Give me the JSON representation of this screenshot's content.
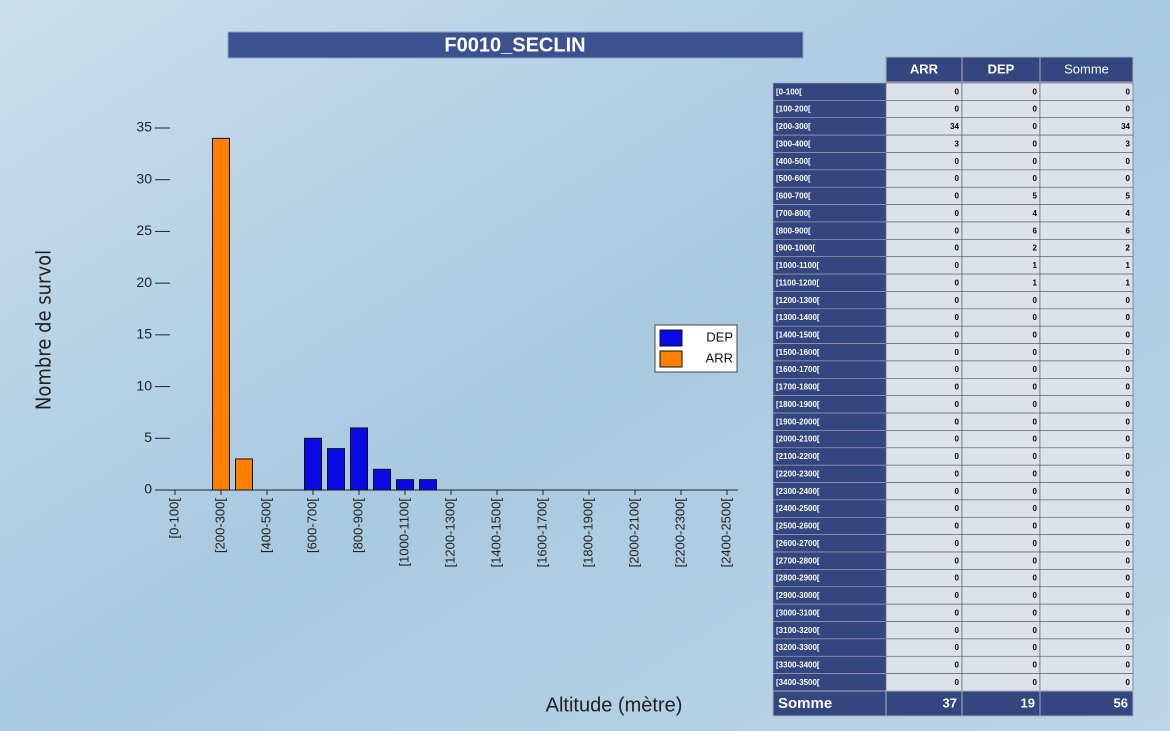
{
  "chart_data": {
    "type": "bar",
    "title": "F0010_SECLIN",
    "y_label": "Nombre de survol",
    "x_label": "Altitude (mètre)",
    "categories": [
      "[0-100[",
      null,
      "[200-300[",
      null,
      "[400-500[",
      null,
      "[600-700[",
      null,
      "[800-900[",
      null,
      "[1000-1100[",
      null,
      "[1200-1300[",
      null,
      "[1400-1500[",
      null,
      "[1600-1700[",
      null,
      "[1800-1900[",
      null,
      "[2000-2100[",
      null,
      "[2200-2300[",
      null,
      "[2400-2500["
    ],
    "series": [
      {
        "name": "DEP",
        "color": "#0a0ae6",
        "values": [
          0,
          0,
          0,
          0,
          0,
          0,
          5,
          4,
          6,
          2,
          1,
          1,
          0,
          0,
          0,
          0,
          0,
          0,
          0,
          0,
          0,
          0,
          0,
          0,
          0
        ]
      },
      {
        "name": "ARR",
        "color": "#ff8000",
        "values": [
          0,
          0,
          34,
          3,
          0,
          0,
          0,
          0,
          0,
          0,
          0,
          0,
          0,
          0,
          0,
          0,
          0,
          0,
          0,
          0,
          0,
          0,
          0,
          0,
          0
        ]
      }
    ],
    "ylim": [
      0,
      35
    ],
    "yticks": [
      0,
      5,
      10,
      15,
      20,
      25,
      30,
      35
    ],
    "legend": "right"
  },
  "table": {
    "columns": [
      "ARR",
      "DEP",
      "Somme"
    ],
    "rows": [
      [
        "[0-100[",
        0,
        0,
        0
      ],
      [
        "[100-200[",
        0,
        0,
        0
      ],
      [
        "[200-300[",
        34,
        0,
        34
      ],
      [
        "[300-400[",
        3,
        0,
        3
      ],
      [
        "[400-500[",
        0,
        0,
        0
      ],
      [
        "[500-600[",
        0,
        0,
        0
      ],
      [
        "[600-700[",
        0,
        5,
        5
      ],
      [
        "[700-800[",
        0,
        4,
        4
      ],
      [
        "[800-900[",
        0,
        6,
        6
      ],
      [
        "[900-1000[",
        0,
        2,
        2
      ],
      [
        "[1000-1100[",
        0,
        1,
        1
      ],
      [
        "[1100-1200[",
        0,
        1,
        1
      ],
      [
        "[1200-1300[",
        0,
        0,
        0
      ],
      [
        "[1300-1400[",
        0,
        0,
        0
      ],
      [
        "[1400-1500[",
        0,
        0,
        0
      ],
      [
        "[1500-1600[",
        0,
        0,
        0
      ],
      [
        "[1600-1700[",
        0,
        0,
        0
      ],
      [
        "[1700-1800[",
        0,
        0,
        0
      ],
      [
        "[1800-1900[",
        0,
        0,
        0
      ],
      [
        "[1900-2000[",
        0,
        0,
        0
      ],
      [
        "[2000-2100[",
        0,
        0,
        0
      ],
      [
        "[2100-2200[",
        0,
        0,
        0
      ],
      [
        "[2200-2300[",
        0,
        0,
        0
      ],
      [
        "[2300-2400[",
        0,
        0,
        0
      ],
      [
        "[2400-2500[",
        0,
        0,
        0
      ],
      [
        "[2500-2600[",
        0,
        0,
        0
      ],
      [
        "[2600-2700[",
        0,
        0,
        0
      ],
      [
        "[2700-2800[",
        0,
        0,
        0
      ],
      [
        "[2800-2900[",
        0,
        0,
        0
      ],
      [
        "[2900-3000[",
        0,
        0,
        0
      ],
      [
        "[3000-3100[",
        0,
        0,
        0
      ],
      [
        "[3100-3200[",
        0,
        0,
        0
      ],
      [
        "[3200-3300[",
        0,
        0,
        0
      ],
      [
        "[3300-3400[",
        0,
        0,
        0
      ],
      [
        "[3400-3500[",
        0,
        0,
        0
      ]
    ],
    "total": [
      "Somme",
      37,
      19,
      56
    ]
  }
}
